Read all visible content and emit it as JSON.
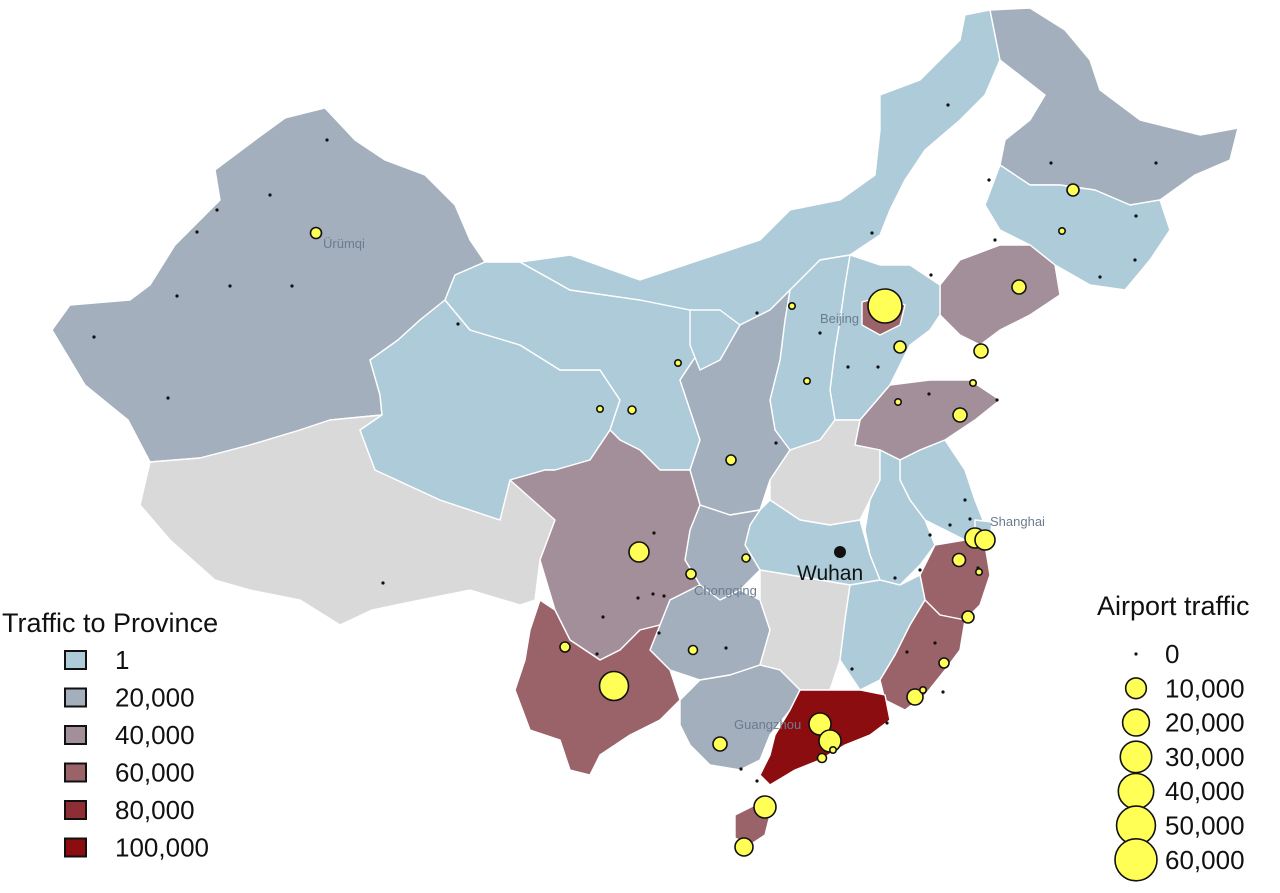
{
  "map": {
    "hub_label": "Wuhan",
    "city_labels": [
      "Ürümqi",
      "Beijing",
      "Shanghai",
      "Chongqing",
      "Guangzhou"
    ]
  },
  "province_colors": {
    "1": "#aecbd9",
    "20000": "#a3afbd",
    "40000": "#a38f99",
    "60000": "#9a6269",
    "80000": "#8e2d33",
    "100000": "#8b0d10",
    "no_data": "#d9d9d9"
  },
  "traffic_legend": {
    "title": "Traffic to Province",
    "items": [
      {
        "label": "1",
        "color": "#aecbd9"
      },
      {
        "label": "20,000",
        "color": "#a3afbd"
      },
      {
        "label": "40,000",
        "color": "#a38f99"
      },
      {
        "label": "60,000",
        "color": "#9a6269"
      },
      {
        "label": "80,000",
        "color": "#8e2d33"
      },
      {
        "label": "100,000",
        "color": "#8b0d10"
      }
    ]
  },
  "airport_legend": {
    "title": "Airport traffic",
    "items": [
      {
        "label": "0",
        "value": 0
      },
      {
        "label": "10,000",
        "value": 10000
      },
      {
        "label": "20,000",
        "value": 20000
      },
      {
        "label": "30,000",
        "value": 30000
      },
      {
        "label": "40,000",
        "value": 40000
      },
      {
        "label": "50,000",
        "value": 50000
      },
      {
        "label": "60,000",
        "value": 60000
      }
    ],
    "marker_color": "#ffff55"
  }
}
